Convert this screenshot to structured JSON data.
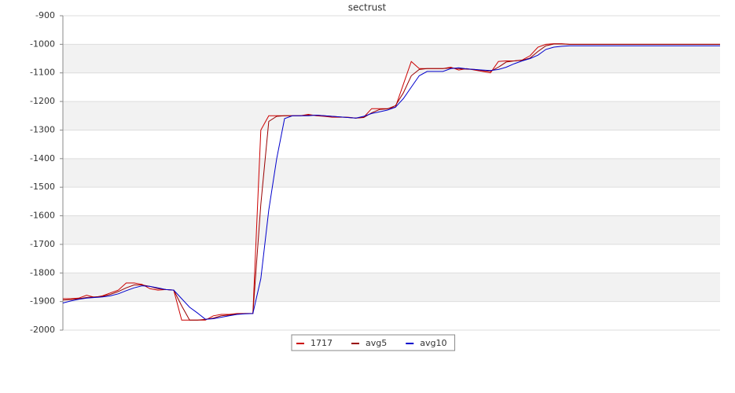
{
  "chart_data": {
    "type": "line",
    "title": "sectrust",
    "ylim": [
      -2000,
      -900
    ],
    "yticks": [
      -900,
      -1000,
      -1100,
      -1200,
      -1300,
      -1400,
      -1500,
      -1600,
      -1700,
      -1800,
      -1900,
      -2000
    ],
    "grid": true,
    "bands": true,
    "legend": "bottom",
    "series": [
      {
        "name": "1717",
        "color": "#cc0000",
        "values": [
          -1890,
          -1890,
          -1888,
          -1878,
          -1885,
          -1880,
          -1870,
          -1860,
          -1835,
          -1835,
          -1840,
          -1855,
          -1860,
          -1858,
          -1860,
          -1965,
          -1965,
          -1965,
          -1965,
          -1950,
          -1945,
          -1945,
          -1942,
          -1942,
          -1942,
          -1300,
          -1250,
          -1250,
          -1250,
          -1250,
          -1250,
          -1245,
          -1250,
          -1252,
          -1255,
          -1255,
          -1255,
          -1258,
          -1255,
          -1225,
          -1225,
          -1225,
          -1220,
          -1140,
          -1060,
          -1085,
          -1085,
          -1085,
          -1085,
          -1080,
          -1090,
          -1085,
          -1090,
          -1095,
          -1100,
          -1060,
          -1058,
          -1058,
          -1055,
          -1040,
          -1010,
          -1000,
          -998,
          -998,
          -1000,
          -1000,
          -1000,
          -1000,
          -1000,
          -1000,
          -1000,
          -1000,
          -1000,
          -1000,
          -1000,
          -1000,
          -1000,
          -1000,
          -1000,
          -1000,
          -1000,
          -1000,
          -1000,
          -1000
        ]
      },
      {
        "name": "avg5",
        "color": "#990000",
        "values": [
          -1895,
          -1893,
          -1890,
          -1886,
          -1884,
          -1882,
          -1875,
          -1865,
          -1852,
          -1842,
          -1842,
          -1847,
          -1855,
          -1858,
          -1860,
          -1915,
          -1965,
          -1965,
          -1962,
          -1958,
          -1950,
          -1947,
          -1944,
          -1942,
          -1942,
          -1560,
          -1270,
          -1252,
          -1250,
          -1250,
          -1250,
          -1248,
          -1248,
          -1250,
          -1252,
          -1254,
          -1256,
          -1258,
          -1256,
          -1240,
          -1228,
          -1226,
          -1215,
          -1170,
          -1110,
          -1088,
          -1085,
          -1085,
          -1085,
          -1083,
          -1085,
          -1087,
          -1088,
          -1092,
          -1095,
          -1080,
          -1062,
          -1058,
          -1056,
          -1048,
          -1025,
          -1005,
          -999,
          -999,
          -1000,
          -1000,
          -1000,
          -1000,
          -1000,
          -1000,
          -1000,
          -1000,
          -1000,
          -1000,
          -1000,
          -1000,
          -1000,
          -1000,
          -1000,
          -1000,
          -1000,
          -1000,
          -1000,
          -1000
        ]
      },
      {
        "name": "avg10",
        "color": "#0000cc",
        "values": [
          -1905,
          -1898,
          -1892,
          -1888,
          -1886,
          -1884,
          -1880,
          -1873,
          -1862,
          -1852,
          -1845,
          -1847,
          -1852,
          -1858,
          -1860,
          -1890,
          -1920,
          -1940,
          -1962,
          -1960,
          -1955,
          -1950,
          -1945,
          -1943,
          -1942,
          -1820,
          -1580,
          -1400,
          -1260,
          -1250,
          -1250,
          -1250,
          -1248,
          -1250,
          -1252,
          -1254,
          -1256,
          -1258,
          -1252,
          -1242,
          -1236,
          -1230,
          -1220,
          -1190,
          -1150,
          -1110,
          -1095,
          -1095,
          -1095,
          -1085,
          -1082,
          -1086,
          -1088,
          -1090,
          -1092,
          -1088,
          -1080,
          -1068,
          -1058,
          -1050,
          -1038,
          -1018,
          -1010,
          -1007,
          -1005,
          -1005,
          -1005,
          -1005,
          -1005,
          -1005,
          -1005,
          -1005,
          -1005,
          -1005,
          -1005,
          -1005,
          -1005,
          -1005,
          -1005,
          -1005,
          -1005,
          -1005,
          -1005,
          -1005
        ]
      }
    ]
  }
}
